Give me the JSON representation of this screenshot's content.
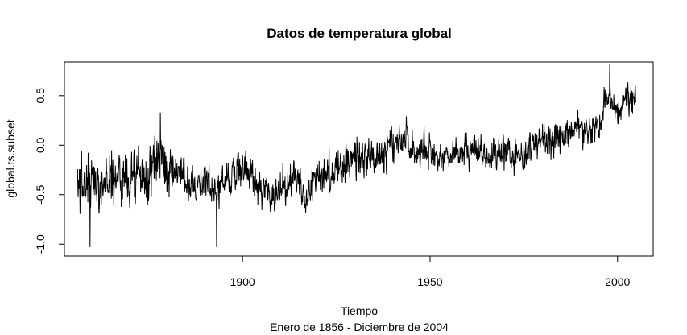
{
  "chart_data": {
    "type": "line",
    "title": "Datos de temperatura global",
    "xlabel": "Tiempo",
    "subtitle": "Enero de 1856 - Diciembre de 2004",
    "ylabel": "global.ts.subset",
    "xlim": [
      1852.5,
      2009.5
    ],
    "ylim": [
      -1.12,
      0.84
    ],
    "x_ticks": [
      1900,
      1950,
      2000
    ],
    "x_tick_labels": [
      "1900",
      "1950",
      "2000"
    ],
    "y_ticks": [
      -1.0,
      -0.5,
      0.0,
      0.5
    ],
    "y_tick_labels": [
      "-1.0",
      "-0.5",
      "0.0",
      "0.5"
    ],
    "grid": false,
    "legend": "none",
    "series": [
      {
        "color": "#000000",
        "x_start": 1856,
        "x_end": 2004.9,
        "annual_anchor_values": [
          [
            1856,
            -0.38
          ],
          [
            1860,
            -0.4
          ],
          [
            1865,
            -0.32
          ],
          [
            1870,
            -0.33
          ],
          [
            1875,
            -0.35
          ],
          [
            1878,
            -0.05
          ],
          [
            1880,
            -0.3
          ],
          [
            1885,
            -0.35
          ],
          [
            1890,
            -0.38
          ],
          [
            1893,
            -0.48
          ],
          [
            1895,
            -0.35
          ],
          [
            1900,
            -0.22
          ],
          [
            1905,
            -0.42
          ],
          [
            1910,
            -0.5
          ],
          [
            1915,
            -0.28
          ],
          [
            1917,
            -0.52
          ],
          [
            1920,
            -0.3
          ],
          [
            1925,
            -0.22
          ],
          [
            1930,
            -0.15
          ],
          [
            1935,
            -0.15
          ],
          [
            1940,
            0.02
          ],
          [
            1944,
            0.08
          ],
          [
            1946,
            -0.05
          ],
          [
            1950,
            -0.12
          ],
          [
            1955,
            -0.12
          ],
          [
            1960,
            -0.03
          ],
          [
            1965,
            -0.12
          ],
          [
            1970,
            -0.06
          ],
          [
            1975,
            -0.12
          ],
          [
            1977,
            0.02
          ],
          [
            1980,
            0.05
          ],
          [
            1985,
            0.04
          ],
          [
            1990,
            0.22
          ],
          [
            1992,
            0.1
          ],
          [
            1995,
            0.22
          ],
          [
            1998,
            0.52
          ],
          [
            2000,
            0.3
          ],
          [
            2002,
            0.45
          ],
          [
            2004.9,
            0.5
          ]
        ],
        "notable_points": [
          [
            1859.3,
            -1.03
          ],
          [
            1878.1,
            0.33
          ],
          [
            1893.1,
            -1.03
          ],
          [
            1997.9,
            0.82
          ]
        ]
      }
    ]
  }
}
